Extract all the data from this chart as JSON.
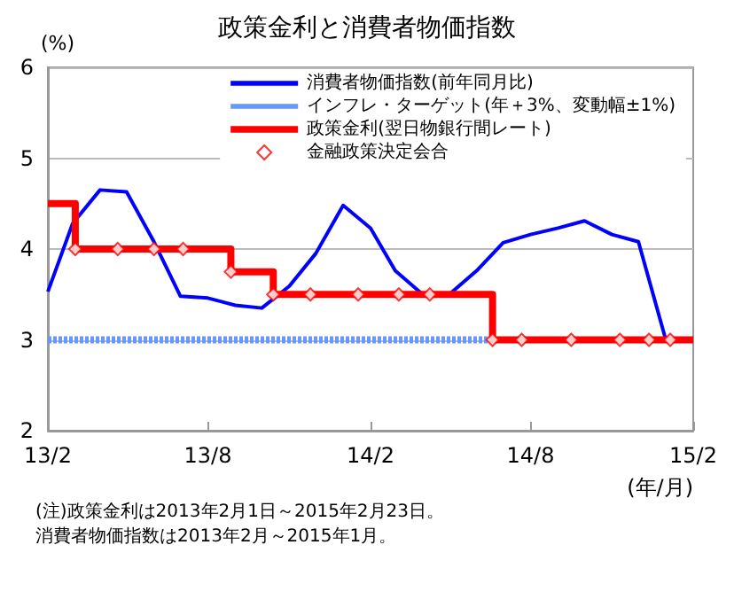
{
  "chart_data": {
    "type": "line",
    "title": "政策金利と消費者物価指数",
    "ylabel": "(%)",
    "xlabel": "(年/月)",
    "xlim": [
      "2013-02",
      "2015-02"
    ],
    "ylim": [
      2,
      6
    ],
    "yticks": [
      2,
      3,
      4,
      5,
      6
    ],
    "xticks": [
      {
        "value": "2013-02",
        "label": "13/2"
      },
      {
        "value": "2013-08",
        "label": "13/8"
      },
      {
        "value": "2014-02",
        "label": "14/2"
      },
      {
        "value": "2014-08",
        "label": "14/8"
      },
      {
        "value": "2015-02",
        "label": "15/2"
      }
    ],
    "grid": "y",
    "legend": "top right",
    "series": [
      {
        "name": "消費者物価指数(前年同月比)",
        "type": "line",
        "color": "#0000ff",
        "x": [
          "2013-02",
          "2013-03",
          "2013-04",
          "2013-05",
          "2013-06",
          "2013-07",
          "2013-08",
          "2013-09",
          "2013-10",
          "2013-11",
          "2013-12",
          "2014-01",
          "2014-02",
          "2014-03",
          "2014-04",
          "2014-05",
          "2014-06",
          "2014-07",
          "2014-08",
          "2014-09",
          "2014-10",
          "2014-11",
          "2014-12",
          "2015-01"
        ],
        "values": [
          3.53,
          4.28,
          4.65,
          4.63,
          4.08,
          3.48,
          3.46,
          3.38,
          3.35,
          3.59,
          3.95,
          4.48,
          4.23,
          3.76,
          3.5,
          3.5,
          3.76,
          4.07,
          4.16,
          4.23,
          4.31,
          4.16,
          4.08,
          3.0
        ]
      },
      {
        "name": "インフレ・ターゲット(年＋3%、変動幅±1%)",
        "type": "line",
        "line_style": "dotted",
        "color": "#6699ff",
        "x": [
          "2013-02",
          "2014-06-15"
        ],
        "values": [
          3,
          3
        ]
      },
      {
        "name": "政策金利(翌日物銀行間レート)",
        "type": "step",
        "color": "#ff0000",
        "x": [
          "2013-02",
          "2013-03-04",
          "2013-08-27",
          "2013-10-14",
          "2014-06-19",
          "2015-02"
        ],
        "values": [
          4.5,
          4.0,
          3.75,
          3.5,
          3.0,
          3.0
        ]
      },
      {
        "name": "金融政策決定会合",
        "type": "scatter",
        "marker": "diamond",
        "color": "#ff0000",
        "x": [
          "2013-03-04",
          "2013-04-21",
          "2013-06-01",
          "2013-07-04",
          "2013-08-27",
          "2013-10-14",
          "2013-11-25",
          "2014-01-18",
          "2014-03-05",
          "2014-04-09",
          "2014-06-19",
          "2014-07-22",
          "2014-09-16",
          "2014-11-10",
          "2014-12-13",
          "2015-01-06"
        ],
        "values": [
          4.0,
          4.0,
          4.0,
          4.0,
          3.75,
          3.5,
          3.5,
          3.5,
          3.5,
          3.5,
          3.0,
          3.0,
          3.0,
          3.0,
          3.0,
          3.0
        ]
      }
    ],
    "annotations": [
      "(注)政策金利は2013年2月1日～2015年2月23日。",
      "消費者物価指数は2013年2月～2015年1月。"
    ]
  }
}
